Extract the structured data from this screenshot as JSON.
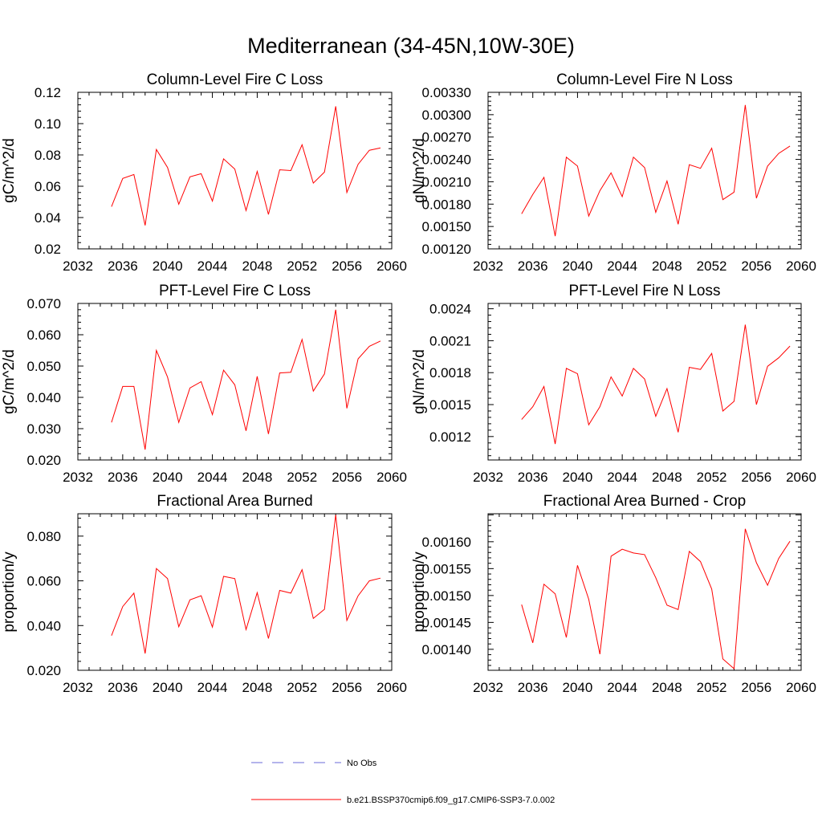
{
  "figure": {
    "title": "Mediterranean (34-45N,10W-30E)"
  },
  "legend": {
    "items": [
      {
        "label": "No Obs",
        "color": "#6a6ad8",
        "dash": true
      },
      {
        "label": "b.e21.BSSP370cmip6.f09_g17.CMIP6-SSP3-7.0.002",
        "color": "#ff0000",
        "dash": false
      }
    ]
  },
  "chart_data": [
    {
      "type": "line",
      "title": "Column-Level Fire C Loss",
      "ylabel": "gC/m^2/d",
      "xlim": [
        2032,
        2060
      ],
      "ylim": [
        0.02,
        0.12
      ],
      "xticks": [
        "2032",
        "2036",
        "2040",
        "2044",
        "2048",
        "2052",
        "2056",
        "2060"
      ],
      "yticks": [
        "0.02",
        "0.04",
        "0.06",
        "0.08",
        "0.10",
        "0.12"
      ],
      "series": [
        {
          "color": "#ff0000",
          "x": [
            2035,
            2036,
            2037,
            2038,
            2039,
            2040,
            2041,
            2042,
            2043,
            2044,
            2045,
            2046,
            2047,
            2048,
            2049,
            2050,
            2051,
            2052,
            2053,
            2054,
            2055,
            2056,
            2057,
            2058,
            2059
          ],
          "y": [
            0.047,
            0.065,
            0.0675,
            0.035,
            0.0835,
            0.072,
            0.0485,
            0.066,
            0.068,
            0.0505,
            0.0775,
            0.071,
            0.0445,
            0.0695,
            0.042,
            0.0705,
            0.07,
            0.0865,
            0.062,
            0.069,
            0.111,
            0.056,
            0.074,
            0.083,
            0.0845
          ]
        }
      ]
    },
    {
      "type": "line",
      "title": "Column-Level Fire N Loss",
      "ylabel": "gN/m^2/d",
      "xlim": [
        2032,
        2060
      ],
      "ylim": [
        0.0012,
        0.0033
      ],
      "xticks": [
        "2032",
        "2036",
        "2040",
        "2044",
        "2048",
        "2052",
        "2056",
        "2060"
      ],
      "yticks": [
        "0.00120",
        "0.00150",
        "0.00180",
        "0.00210",
        "0.00240",
        "0.00270",
        "0.00300",
        "0.00330"
      ],
      "series": [
        {
          "color": "#ff0000",
          "x": [
            2035,
            2036,
            2037,
            2038,
            2039,
            2040,
            2041,
            2042,
            2043,
            2044,
            2045,
            2046,
            2047,
            2048,
            2049,
            2050,
            2051,
            2052,
            2053,
            2054,
            2055,
            2056,
            2057,
            2058,
            2059
          ],
          "y": [
            0.00167,
            0.00193,
            0.00216,
            0.00137,
            0.00243,
            0.00231,
            0.00164,
            0.00198,
            0.00222,
            0.0019,
            0.00243,
            0.00229,
            0.00169,
            0.00211,
            0.00153,
            0.00233,
            0.00228,
            0.00255,
            0.00186,
            0.00196,
            0.00313,
            0.00188,
            0.00231,
            0.00248,
            0.00258
          ]
        }
      ]
    },
    {
      "type": "line",
      "title": "PFT-Level Fire C Loss",
      "ylabel": "gC/m^2/d",
      "xlim": [
        2032,
        2060
      ],
      "ylim": [
        0.02,
        0.07
      ],
      "xticks": [
        "2032",
        "2036",
        "2040",
        "2044",
        "2048",
        "2052",
        "2056",
        "2060"
      ],
      "yticks": [
        "0.020",
        "0.030",
        "0.040",
        "0.050",
        "0.060",
        "0.070"
      ],
      "series": [
        {
          "color": "#ff0000",
          "x": [
            2035,
            2036,
            2037,
            2038,
            2039,
            2040,
            2041,
            2042,
            2043,
            2044,
            2045,
            2046,
            2047,
            2048,
            2049,
            2050,
            2051,
            2052,
            2053,
            2054,
            2055,
            2056,
            2057,
            2058,
            2059
          ],
          "y": [
            0.032,
            0.0435,
            0.0435,
            0.0233,
            0.055,
            0.0465,
            0.032,
            0.043,
            0.045,
            0.0345,
            0.0487,
            0.044,
            0.0293,
            0.0467,
            0.0283,
            0.0478,
            0.048,
            0.0585,
            0.042,
            0.0475,
            0.068,
            0.0365,
            0.0523,
            0.0563,
            0.058
          ]
        }
      ]
    },
    {
      "type": "line",
      "title": "PFT-Level Fire N Loss",
      "ylabel": "gN/m^2/d",
      "xlim": [
        2032,
        2060
      ],
      "ylim": [
        0.00098,
        0.00245
      ],
      "xticks": [
        "2032",
        "2036",
        "2040",
        "2044",
        "2048",
        "2052",
        "2056",
        "2060"
      ],
      "yticks": [
        "0.0012",
        "0.0015",
        "0.0018",
        "0.0021",
        "0.0024"
      ],
      "series": [
        {
          "color": "#ff0000",
          "x": [
            2035,
            2036,
            2037,
            2038,
            2039,
            2040,
            2041,
            2042,
            2043,
            2044,
            2045,
            2046,
            2047,
            2048,
            2049,
            2050,
            2051,
            2052,
            2053,
            2054,
            2055,
            2056,
            2057,
            2058,
            2059
          ],
          "y": [
            0.00136,
            0.00148,
            0.00167,
            0.00113,
            0.00184,
            0.00179,
            0.00131,
            0.00148,
            0.00176,
            0.00158,
            0.00184,
            0.00174,
            0.00139,
            0.00165,
            0.00124,
            0.00185,
            0.00183,
            0.00198,
            0.00144,
            0.00153,
            0.00225,
            0.0015,
            0.00186,
            0.00194,
            0.00205
          ]
        }
      ]
    },
    {
      "type": "line",
      "title": "Fractional Area Burned",
      "ylabel": "proportion/y",
      "xlim": [
        2032,
        2060
      ],
      "ylim": [
        0.02,
        0.09
      ],
      "xticks": [
        "2032",
        "2036",
        "2040",
        "2044",
        "2048",
        "2052",
        "2056",
        "2060"
      ],
      "yticks": [
        "0.020",
        "0.040",
        "0.060",
        "0.080"
      ],
      "series": [
        {
          "color": "#ff0000",
          "x": [
            2035,
            2036,
            2037,
            2038,
            2039,
            2040,
            2041,
            2042,
            2043,
            2044,
            2045,
            2046,
            2047,
            2048,
            2049,
            2050,
            2051,
            2052,
            2053,
            2054,
            2055,
            2056,
            2057,
            2058,
            2059
          ],
          "y": [
            0.0355,
            0.0485,
            0.0545,
            0.0275,
            0.0655,
            0.061,
            0.0395,
            0.0515,
            0.0533,
            0.0393,
            0.062,
            0.061,
            0.0382,
            0.0547,
            0.0342,
            0.0557,
            0.0545,
            0.065,
            0.0432,
            0.0473,
            0.0895,
            0.0423,
            0.0533,
            0.06,
            0.0612
          ]
        }
      ]
    },
    {
      "type": "line",
      "title": "Fractional Area Burned - Crop",
      "ylabel": "proportion/y",
      "xlim": [
        2032,
        2060
      ],
      "ylim": [
        0.001361,
        0.001652
      ],
      "xticks": [
        "2032",
        "2036",
        "2040",
        "2044",
        "2048",
        "2052",
        "2056",
        "2060"
      ],
      "yticks": [
        "0.00140",
        "0.00145",
        "0.00150",
        "0.00155",
        "0.00160"
      ],
      "series": [
        {
          "color": "#ff0000",
          "x": [
            2035,
            2036,
            2037,
            2038,
            2039,
            2040,
            2041,
            2042,
            2043,
            2044,
            2045,
            2046,
            2047,
            2048,
            2049,
            2050,
            2051,
            2052,
            2053,
            2054,
            2055,
            2056,
            2057,
            2058,
            2059
          ],
          "y": [
            0.001483,
            0.001412,
            0.001521,
            0.001503,
            0.001422,
            0.001556,
            0.001493,
            0.001391,
            0.001573,
            0.001586,
            0.001579,
            0.001576,
            0.001533,
            0.001482,
            0.001474,
            0.001582,
            0.001563,
            0.001512,
            0.001382,
            0.001364,
            0.001624,
            0.001561,
            0.001519,
            0.001569,
            0.001601
          ]
        }
      ]
    }
  ]
}
